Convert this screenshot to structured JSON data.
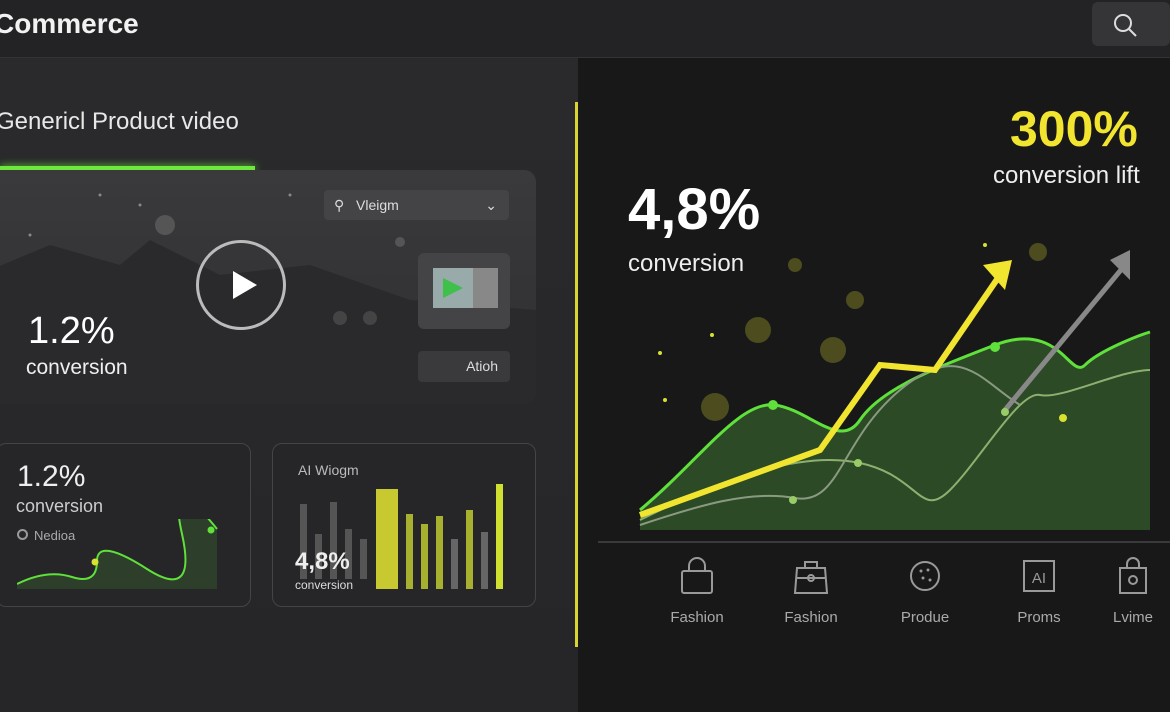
{
  "header": {
    "title": "Commerce",
    "search_icon": "search-icon"
  },
  "hero": {
    "section_title": "Genericl Product video",
    "dropdown_value": "Vleigm",
    "action_label": "Atioh",
    "stat_value": "1.2%",
    "stat_label": "conversion"
  },
  "cards": [
    {
      "stat_value": "1.2%",
      "stat_label": "conversion",
      "legend": "Nedioa"
    },
    {
      "title": "AI Wiogm",
      "stat_value": "4,8%",
      "stat_label": "conversion"
    }
  ],
  "main": {
    "stat_value": "4,8%",
    "stat_label": "conversion",
    "lift_value": "300%",
    "lift_label": "conversion lift"
  },
  "categories": [
    {
      "label": "Fashion",
      "icon": "bag-icon"
    },
    {
      "label": "Fashion",
      "icon": "handbag-icon"
    },
    {
      "label": "Produe",
      "icon": "product-icon"
    },
    {
      "label": "Proms",
      "icon": "ai-icon"
    },
    {
      "label": "Lvime",
      "icon": "shopping-bag-icon"
    }
  ],
  "colors": {
    "accent_green": "#5fe03a",
    "accent_yellow": "#f2e530",
    "background": "#242426"
  }
}
